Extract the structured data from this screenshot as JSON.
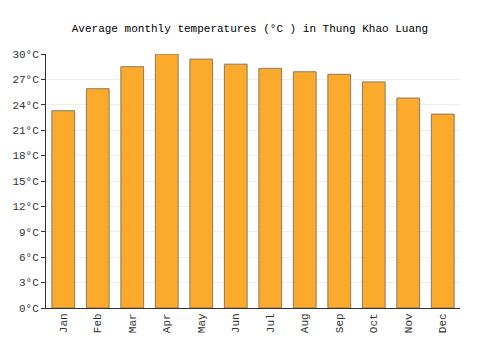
{
  "chart_data": {
    "type": "bar",
    "title": "Average monthly temperatures (°C ) in Thung Khao Luang",
    "categories": [
      "Jan",
      "Feb",
      "Mar",
      "Apr",
      "May",
      "Jun",
      "Jul",
      "Aug",
      "Sep",
      "Oct",
      "Nov",
      "Dec"
    ],
    "values": [
      23.3,
      25.9,
      28.5,
      30.0,
      29.4,
      28.8,
      28.3,
      27.9,
      27.6,
      26.7,
      24.8,
      22.9
    ],
    "color": "#fcaa2c",
    "ylim": [
      0,
      30
    ],
    "yticks": [
      {
        "value": 0,
        "label": "0°C"
      },
      {
        "value": 3,
        "label": "3°C"
      },
      {
        "value": 6,
        "label": "6°C"
      },
      {
        "value": 9,
        "label": "9°C"
      },
      {
        "value": 12,
        "label": "12°C"
      },
      {
        "value": 15,
        "label": "15°C"
      },
      {
        "value": 18,
        "label": "18°C"
      },
      {
        "value": 21,
        "label": "21°C"
      },
      {
        "value": 24,
        "label": "24°C"
      },
      {
        "value": 27,
        "label": "27°C"
      },
      {
        "value": 30,
        "label": "30°C"
      }
    ],
    "grid": true
  }
}
